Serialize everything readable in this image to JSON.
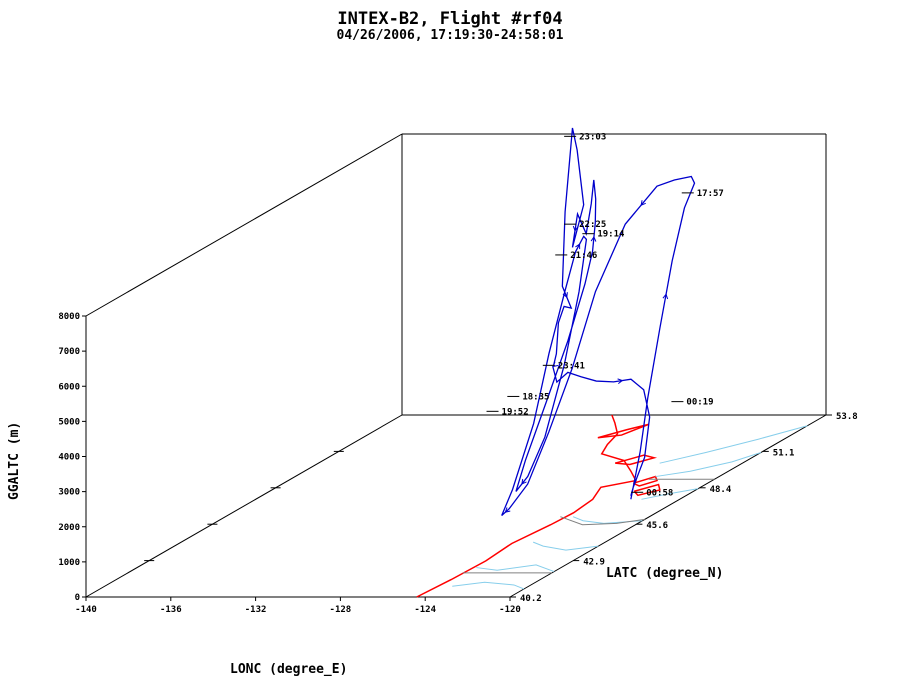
{
  "chart_data": {
    "type": "line",
    "subtype": "3d-flight-track",
    "title": "INTEX-B2, Flight #rf04",
    "subtitle": "04/26/2006, 17:19:30-24:58:01",
    "xlabel": "LONC (degree_E)",
    "ylabel": "LATC (degree_N)",
    "zlabel": "GGALTC (m)",
    "xlim": [
      -140,
      -120
    ],
    "ylim": [
      40.2,
      53.8
    ],
    "zlim": [
      0,
      8000
    ],
    "x_ticks": [
      "-140",
      "-136",
      "-132",
      "-128",
      "-124",
      "-120"
    ],
    "y_ticks": [
      "40.2",
      "42.9",
      "45.6",
      "48.4",
      "51.1",
      "53.8"
    ],
    "z_ticks": [
      "0",
      "1000",
      "2000",
      "3000",
      "4000",
      "5000",
      "6000",
      "7000",
      "8000"
    ],
    "colors": {
      "track": "#0000cc",
      "coastline": "#ff0000",
      "rivers": "#87ceeb",
      "borders": "#808080",
      "axes": "#000000"
    },
    "time_labels": [
      {
        "text": "17:57",
        "lon": -124.0,
        "lat": 51.5,
        "alt": 7200
      },
      {
        "text": "18:35",
        "lon": -126.2,
        "lat": 46.0,
        "alt": 3500
      },
      {
        "text": "19:14",
        "lon": -128.8,
        "lat": 51.6,
        "alt": 6000
      },
      {
        "text": "19:52",
        "lon": -127.4,
        "lat": 46.2,
        "alt": 3000
      },
      {
        "text": "21:46",
        "lon": -129.2,
        "lat": 50.8,
        "alt": 5700
      },
      {
        "text": "22:25",
        "lon": -129.0,
        "lat": 51.0,
        "alt": 6500
      },
      {
        "text": "23:03",
        "lon": -129.0,
        "lat": 51.0,
        "alt": 9000
      },
      {
        "text": "23:41",
        "lon": -126.5,
        "lat": 47.8,
        "alt": 3700
      },
      {
        "text": "00:19",
        "lon": -121.2,
        "lat": 48.5,
        "alt": 2400
      },
      {
        "text": "00:58",
        "lon": -122.0,
        "lat": 47.5,
        "alt": 200
      }
    ],
    "track": [
      [
        -122.3,
        47.5,
        0
      ],
      [
        -122.3,
        47.9,
        1200
      ],
      [
        -122.6,
        48.5,
        2500
      ],
      [
        -122.9,
        49.3,
        4200
      ],
      [
        -123.2,
        50.1,
        5800
      ],
      [
        -123.5,
        50.9,
        7000
      ],
      [
        -123.9,
        51.7,
        7400
      ],
      [
        -124.6,
        52.2,
        7400
      ],
      [
        -125.4,
        52.2,
        7300
      ],
      [
        -126.0,
        52.0,
        7200
      ],
      [
        -126.4,
        51.0,
        6500
      ],
      [
        -126.6,
        49.9,
        5000
      ],
      [
        -126.6,
        48.9,
        3200
      ],
      [
        -126.5,
        47.8,
        1800
      ],
      [
        -126.4,
        46.8,
        700
      ],
      [
        -126.4,
        46.0,
        300
      ],
      [
        -126.2,
        45.5,
        300
      ],
      [
        -125.8,
        45.6,
        1000
      ],
      [
        -125.9,
        46.6,
        2500
      ],
      [
        -126.6,
        47.9,
        4000
      ],
      [
        -127.4,
        49.3,
        5200
      ],
      [
        -128.2,
        50.5,
        5900
      ],
      [
        -128.8,
        51.4,
        6000
      ],
      [
        -129.0,
        51.7,
        5800
      ],
      [
        -128.8,
        51.2,
        4500
      ],
      [
        -128.4,
        50.2,
        2800
      ],
      [
        -128.0,
        49.0,
        1200
      ],
      [
        -127.6,
        47.9,
        500
      ],
      [
        -127.5,
        47.3,
        300
      ],
      [
        -127.6,
        47.8,
        1000
      ],
      [
        -127.7,
        48.8,
        2300
      ],
      [
        -127.9,
        49.9,
        3600
      ],
      [
        -128.3,
        51.0,
        4800
      ],
      [
        -128.6,
        51.6,
        5500
      ],
      [
        -128.8,
        51.9,
        6200
      ],
      [
        -129.0,
        52.1,
        6800
      ],
      [
        -129.2,
        52.2,
        7300
      ],
      [
        -129.1,
        52.0,
        6700
      ],
      [
        -128.9,
        51.6,
        6000
      ],
      [
        -129.2,
        51.5,
        6600
      ],
      [
        -129.0,
        51.1,
        5800
      ],
      [
        -128.8,
        51.4,
        6900
      ],
      [
        -129.0,
        51.3,
        8500
      ],
      [
        -129.0,
        51.1,
        9200
      ],
      [
        -128.8,
        50.6,
        7000
      ],
      [
        -128.6,
        50.3,
        5000
      ],
      [
        -128.4,
        50.5,
        4300
      ],
      [
        -128.3,
        50.1,
        4500
      ],
      [
        -127.8,
        49.4,
        4300
      ],
      [
        -127.2,
        48.8,
        4000
      ],
      [
        -126.8,
        48.4,
        3800
      ],
      [
        -126.5,
        48.0,
        3600
      ],
      [
        -126.2,
        47.7,
        3700
      ],
      [
        -125.9,
        47.6,
        3300
      ],
      [
        -125.6,
        47.8,
        3500
      ],
      [
        -125.2,
        48.0,
        3300
      ],
      [
        -124.7,
        48.2,
        3100
      ],
      [
        -124.1,
        48.4,
        3000
      ],
      [
        -123.5,
        48.6,
        3000
      ],
      [
        -122.9,
        48.6,
        2700
      ],
      [
        -122.4,
        48.4,
        2000
      ],
      [
        -122.2,
        48.0,
        1000
      ],
      [
        -122.3,
        47.6,
        300
      ],
      [
        -122.3,
        47.5,
        100
      ]
    ]
  }
}
